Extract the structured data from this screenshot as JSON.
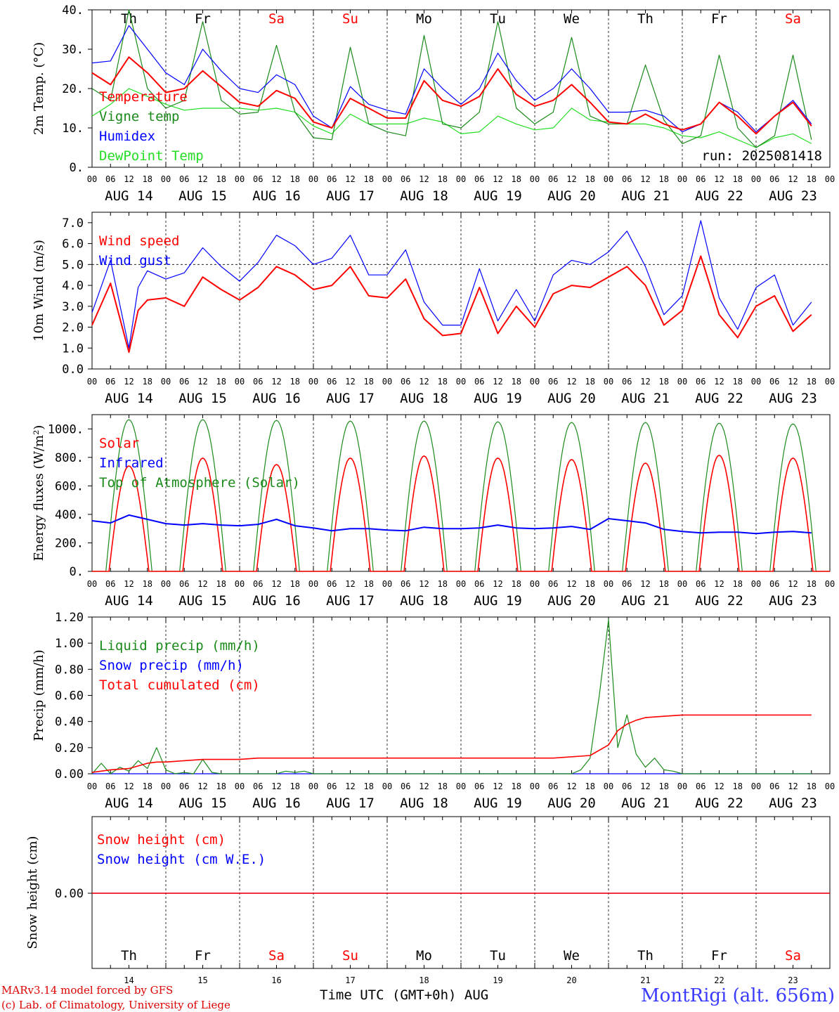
{
  "chart_data": [
    {
      "type": "line",
      "ylabel": "2m Temp. (°C)",
      "ylim": [
        0,
        40
      ],
      "yticks": [
        "0.",
        "10.",
        "20.",
        "30.",
        "40."
      ],
      "run_label": "run: 2025081418",
      "series": [
        {
          "name": "Temperature",
          "color": "#ff0000",
          "x": [
            0,
            6,
            12,
            18,
            24,
            30,
            36,
            42,
            48,
            54,
            60,
            66,
            72,
            78,
            84,
            90,
            96,
            102,
            108,
            114,
            120,
            126,
            132,
            138,
            144,
            150,
            156,
            162,
            168,
            174,
            180,
            186,
            192,
            198,
            204,
            210,
            216,
            222,
            228,
            234
          ],
          "y": [
            24,
            21,
            28,
            24,
            19,
            20,
            24.5,
            20.5,
            16.5,
            15.5,
            19.5,
            17.5,
            11.5,
            10,
            17.5,
            15,
            12.5,
            12.5,
            22,
            17,
            15.5,
            18,
            25,
            18.5,
            15.5,
            17,
            21,
            16.5,
            11.5,
            11,
            13.5,
            11,
            9.5,
            11,
            16.5,
            13,
            8.5,
            13,
            16.5,
            10.5
          ]
        },
        {
          "name": "Vigne temp",
          "color": "#1a8a1a",
          "x": [
            0,
            6,
            12,
            18,
            24,
            30,
            36,
            42,
            48,
            54,
            60,
            66,
            72,
            78,
            84,
            90,
            96,
            102,
            108,
            114,
            120,
            126,
            132,
            138,
            144,
            150,
            156,
            162,
            168,
            174,
            180,
            186,
            192,
            198,
            204,
            210,
            216,
            222,
            228,
            234
          ],
          "y": [
            20,
            17,
            40,
            20,
            15,
            17,
            37,
            17,
            13.5,
            14,
            31,
            14,
            7.5,
            7,
            30.5,
            11,
            9,
            8,
            33.5,
            11,
            10,
            14,
            37,
            15,
            11,
            14,
            33,
            13,
            11,
            11,
            26,
            12,
            6,
            8,
            28.5,
            10,
            5,
            8,
            28.5,
            7
          ]
        },
        {
          "name": "Humidex",
          "color": "#0000ff",
          "x": [
            0,
            6,
            12,
            18,
            24,
            30,
            36,
            42,
            48,
            54,
            60,
            66,
            72,
            78,
            84,
            90,
            96,
            102,
            108,
            114,
            120,
            126,
            132,
            138,
            144,
            150,
            156,
            162,
            168,
            174,
            180,
            186,
            192,
            198,
            204,
            210,
            216,
            222,
            228,
            234
          ],
          "y": [
            26.5,
            27,
            36,
            30,
            24,
            21,
            30,
            24.5,
            20,
            19,
            23.5,
            21,
            13,
            10,
            20.5,
            16,
            14.5,
            13.5,
            25,
            20,
            16,
            20,
            29,
            22,
            17,
            20,
            25,
            20,
            14,
            14,
            14.5,
            13,
            9,
            11,
            16.5,
            14,
            9,
            13,
            17,
            11
          ]
        },
        {
          "name": "DewPoint Temp",
          "color": "#22dd22",
          "x": [
            0,
            6,
            12,
            18,
            24,
            30,
            36,
            42,
            48,
            54,
            60,
            66,
            72,
            78,
            84,
            90,
            96,
            102,
            108,
            114,
            120,
            126,
            132,
            138,
            144,
            150,
            156,
            162,
            168,
            174,
            180,
            186,
            192,
            198,
            204,
            210,
            216,
            222,
            228,
            234
          ],
          "y": [
            13,
            16,
            20,
            18,
            16,
            14.5,
            15,
            15,
            15,
            14.5,
            15,
            14,
            10.5,
            8.5,
            13.5,
            11,
            11,
            11,
            12.5,
            11.5,
            8.5,
            9,
            13,
            11,
            9.5,
            10,
            15,
            12,
            11.5,
            11,
            11,
            10,
            8,
            7.5,
            9,
            7,
            5,
            7.5,
            8.5,
            6
          ]
        }
      ]
    },
    {
      "type": "line",
      "ylabel": "10m Wind (m/s)",
      "ylim": [
        0,
        7.5
      ],
      "yticks": [
        "0.0",
        "1.0",
        "2.0",
        "3.0",
        "4.0",
        "5.0",
        "6.0",
        "7.0"
      ],
      "threshold": 5.0,
      "series": [
        {
          "name": "Wind speed",
          "color": "#ff0000",
          "x": [
            0,
            6,
            12,
            15,
            18,
            24,
            30,
            36,
            42,
            48,
            54,
            60,
            66,
            72,
            78,
            84,
            90,
            96,
            102,
            108,
            114,
            120,
            126,
            132,
            138,
            144,
            150,
            156,
            162,
            168,
            174,
            180,
            186,
            192,
            198,
            204,
            210,
            216,
            222,
            228,
            234
          ],
          "y": [
            2.1,
            4.1,
            0.8,
            2.8,
            3.3,
            3.4,
            3.0,
            4.4,
            3.8,
            3.3,
            3.9,
            4.9,
            4.5,
            3.8,
            4.0,
            4.9,
            3.5,
            3.4,
            4.3,
            2.4,
            1.6,
            1.7,
            3.9,
            1.7,
            3.0,
            2.0,
            3.6,
            4.0,
            3.9,
            4.4,
            4.9,
            4.0,
            2.1,
            2.8,
            5.4,
            2.6,
            1.5,
            3.0,
            3.5,
            1.8,
            2.6
          ]
        },
        {
          "name": "Wind gust",
          "color": "#0000ff",
          "x": [
            0,
            6,
            12,
            15,
            18,
            24,
            30,
            36,
            42,
            48,
            54,
            60,
            66,
            72,
            78,
            84,
            90,
            96,
            102,
            108,
            114,
            120,
            126,
            132,
            138,
            144,
            150,
            156,
            162,
            168,
            174,
            180,
            186,
            192,
            198,
            204,
            210,
            216,
            222,
            228,
            234
          ],
          "y": [
            2.7,
            5.2,
            1.0,
            3.9,
            4.7,
            4.3,
            4.6,
            5.8,
            4.9,
            4.2,
            5.1,
            6.4,
            5.9,
            5.0,
            5.3,
            6.4,
            4.5,
            4.5,
            5.7,
            3.2,
            2.1,
            2.1,
            4.8,
            2.3,
            3.8,
            2.3,
            4.5,
            5.2,
            5.0,
            5.6,
            6.6,
            4.9,
            2.6,
            3.5,
            7.1,
            3.4,
            1.9,
            3.9,
            4.5,
            2.1,
            3.2
          ]
        }
      ]
    },
    {
      "type": "line",
      "ylabel": "Energy fluxes (W/m²)",
      "ylim": [
        0,
        1100
      ],
      "yticks": [
        "0.",
        "200.",
        "400.",
        "600.",
        "800.",
        "1000."
      ],
      "series": [
        {
          "name": "Solar",
          "color": "#ff0000",
          "daily_peak": [
            740,
            795,
            750,
            795,
            810,
            795,
            785,
            760,
            815,
            795
          ]
        },
        {
          "name": "Infrared",
          "color": "#0000ff",
          "x": [
            0,
            6,
            12,
            18,
            24,
            30,
            36,
            42,
            48,
            54,
            60,
            66,
            72,
            78,
            84,
            90,
            96,
            102,
            108,
            114,
            120,
            126,
            132,
            138,
            144,
            150,
            156,
            162,
            168,
            174,
            180,
            186,
            192,
            198,
            204,
            210,
            216,
            222,
            228,
            234
          ],
          "y": [
            355,
            340,
            395,
            365,
            335,
            325,
            335,
            325,
            320,
            330,
            365,
            320,
            305,
            285,
            300,
            300,
            290,
            285,
            310,
            300,
            300,
            305,
            325,
            305,
            300,
            305,
            315,
            295,
            370,
            355,
            340,
            295,
            280,
            270,
            275,
            275,
            265,
            275,
            280,
            270
          ]
        },
        {
          "name": "Top of Atmosphere (Solar)",
          "color": "#1a8a1a",
          "daily_peak": [
            1065,
            1065,
            1060,
            1055,
            1055,
            1050,
            1045,
            1045,
            1040,
            1035
          ]
        }
      ]
    },
    {
      "type": "line",
      "ylabel": "Precip (mm/h)",
      "ylim": [
        0,
        1.2
      ],
      "yticks": [
        "0.00",
        "0.20",
        "0.40",
        "0.60",
        "0.80",
        "1.00",
        "1.20"
      ],
      "series": [
        {
          "name": "Liquid precip (mm/h)",
          "color": "#1a8a1a",
          "x": [
            0,
            3,
            6,
            9,
            12,
            15,
            18,
            21,
            24,
            27,
            30,
            33,
            36,
            39,
            42,
            60,
            63,
            66,
            69,
            72,
            150,
            156,
            159,
            162,
            165,
            168,
            171,
            174,
            177,
            180,
            183,
            186,
            189,
            192,
            195,
            234
          ],
          "y": [
            0,
            0.08,
            0,
            0.05,
            0.02,
            0.1,
            0.04,
            0.2,
            0.03,
            0,
            0.01,
            0,
            0.11,
            0.01,
            0,
            0,
            0.02,
            0.01,
            0.02,
            0,
            0,
            0,
            0.03,
            0.12,
            0.6,
            1.18,
            0.2,
            0.45,
            0.15,
            0.05,
            0.12,
            0.03,
            0.02,
            0,
            0,
            0
          ]
        },
        {
          "name": "Snow precip (mm/h)",
          "color": "#0000ff",
          "x": [
            0,
            234
          ],
          "y": [
            0,
            0
          ]
        },
        {
          "name": "Total cumulated (cm)",
          "color": "#ff0000",
          "x": [
            0,
            6,
            12,
            18,
            21,
            24,
            30,
            36,
            42,
            48,
            54,
            60,
            66,
            72,
            150,
            162,
            168,
            171,
            174,
            177,
            180,
            186,
            192,
            234
          ],
          "y": [
            0.01,
            0.03,
            0.04,
            0.08,
            0.09,
            0.09,
            0.1,
            0.11,
            0.11,
            0.11,
            0.12,
            0.12,
            0.12,
            0.12,
            0.12,
            0.14,
            0.22,
            0.33,
            0.38,
            0.41,
            0.43,
            0.44,
            0.45,
            0.45
          ]
        }
      ]
    },
    {
      "type": "line",
      "ylabel": "Snow height (cm)",
      "ytick": "0.00",
      "series": [
        {
          "name": "Snow height (cm)",
          "color": "#ff0000",
          "x": [
            0,
            234
          ],
          "y": [
            0,
            0
          ]
        },
        {
          "name": "Snow height (cm W.E.)",
          "color": "#0000ff",
          "x": [
            0,
            234
          ],
          "y": [
            0,
            0
          ]
        }
      ]
    }
  ],
  "days": [
    {
      "abbr": "Th",
      "date": "AUG 14",
      "num": "14",
      "color": "#000000"
    },
    {
      "abbr": "Fr",
      "date": "AUG 15",
      "num": "15",
      "color": "#000000"
    },
    {
      "abbr": "Sa",
      "date": "AUG 16",
      "num": "16",
      "color": "#ff0000"
    },
    {
      "abbr": "Su",
      "date": "AUG 17",
      "num": "17",
      "color": "#ff0000"
    },
    {
      "abbr": "Mo",
      "date": "AUG 18",
      "num": "18",
      "color": "#000000"
    },
    {
      "abbr": "Tu",
      "date": "AUG 19",
      "num": "19",
      "color": "#000000"
    },
    {
      "abbr": "We",
      "date": "AUG 20",
      "num": "20",
      "color": "#000000"
    },
    {
      "abbr": "Th",
      "date": "AUG 21",
      "num": "21",
      "color": "#000000"
    },
    {
      "abbr": "Fr",
      "date": "AUG 22",
      "num": "22",
      "color": "#000000"
    },
    {
      "abbr": "Sa",
      "date": "AUG 23",
      "num": "23",
      "color": "#ff0000"
    }
  ],
  "hour_ticks": [
    "00",
    "06",
    "12",
    "18"
  ],
  "footer": {
    "model": "MARv3.14 model forced by GFS",
    "credit": "(c) Lab. of Climatology, University of Liege",
    "xlabel": "Time UTC (GMT+0h) AUG",
    "station": "MontRigi (alt. 656m)"
  }
}
